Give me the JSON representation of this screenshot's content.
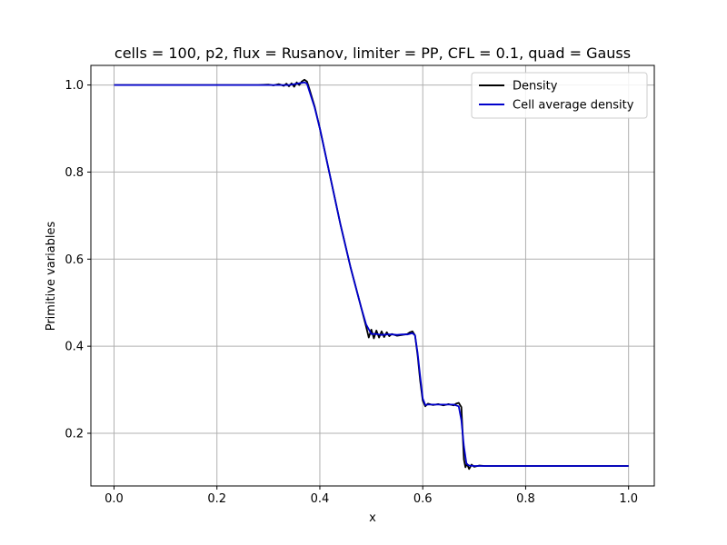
{
  "chart_data": {
    "type": "line",
    "title": "cells = 100, p2, flux = Rusanov, limiter = PP, CFL = 0.1, quad = Gauss",
    "xlabel": "x",
    "ylabel": "Primitive variables",
    "xlim": [
      -0.045,
      1.05
    ],
    "ylim": [
      0.079,
      1.045
    ],
    "xticks": [
      0.0,
      0.2,
      0.4,
      0.6,
      0.8,
      1.0
    ],
    "xtick_labels": [
      "0.0",
      "0.2",
      "0.4",
      "0.6",
      "0.8",
      "1.0"
    ],
    "yticks": [
      0.2,
      0.4,
      0.6,
      0.8,
      1.0
    ],
    "ytick_labels": [
      "0.2",
      "0.4",
      "0.6",
      "0.8",
      "1.0"
    ],
    "grid": true,
    "legend_position": "top-right",
    "series": [
      {
        "name": "Density",
        "color": "#000000",
        "points": [
          [
            0.0,
            1.0
          ],
          [
            0.28,
            1.0
          ],
          [
            0.3,
            1.001
          ],
          [
            0.31,
            0.999
          ],
          [
            0.32,
            1.002
          ],
          [
            0.33,
            0.998
          ],
          [
            0.335,
            1.003
          ],
          [
            0.34,
            0.997
          ],
          [
            0.345,
            1.004
          ],
          [
            0.35,
            0.996
          ],
          [
            0.355,
            1.006
          ],
          [
            0.36,
            1.0
          ],
          [
            0.365,
            1.008
          ],
          [
            0.37,
            1.012
          ],
          [
            0.375,
            1.008
          ],
          [
            0.38,
            0.99
          ],
          [
            0.39,
            0.95
          ],
          [
            0.4,
            0.9
          ],
          [
            0.42,
            0.79
          ],
          [
            0.44,
            0.68
          ],
          [
            0.46,
            0.58
          ],
          [
            0.48,
            0.49
          ],
          [
            0.49,
            0.445
          ],
          [
            0.495,
            0.42
          ],
          [
            0.5,
            0.438
          ],
          [
            0.505,
            0.418
          ],
          [
            0.51,
            0.436
          ],
          [
            0.515,
            0.42
          ],
          [
            0.52,
            0.434
          ],
          [
            0.525,
            0.421
          ],
          [
            0.53,
            0.432
          ],
          [
            0.535,
            0.423
          ],
          [
            0.54,
            0.428
          ],
          [
            0.55,
            0.424
          ],
          [
            0.56,
            0.426
          ],
          [
            0.57,
            0.428
          ],
          [
            0.575,
            0.432
          ],
          [
            0.58,
            0.434
          ],
          [
            0.585,
            0.425
          ],
          [
            0.59,
            0.38
          ],
          [
            0.595,
            0.32
          ],
          [
            0.6,
            0.275
          ],
          [
            0.605,
            0.262
          ],
          [
            0.61,
            0.268
          ],
          [
            0.62,
            0.265
          ],
          [
            0.63,
            0.267
          ],
          [
            0.64,
            0.264
          ],
          [
            0.65,
            0.267
          ],
          [
            0.66,
            0.264
          ],
          [
            0.665,
            0.268
          ],
          [
            0.67,
            0.27
          ],
          [
            0.675,
            0.26
          ],
          [
            0.68,
            0.14
          ],
          [
            0.683,
            0.122
          ],
          [
            0.686,
            0.13
          ],
          [
            0.69,
            0.118
          ],
          [
            0.695,
            0.128
          ],
          [
            0.7,
            0.123
          ],
          [
            0.71,
            0.126
          ],
          [
            0.72,
            0.125
          ],
          [
            1.0,
            0.125
          ]
        ]
      },
      {
        "name": "Cell average density",
        "color": "#0000cc",
        "points": [
          [
            0.0,
            1.0
          ],
          [
            0.3,
            1.0
          ],
          [
            0.34,
            1.0
          ],
          [
            0.35,
            1.002
          ],
          [
            0.36,
            1.004
          ],
          [
            0.37,
            1.006
          ],
          [
            0.375,
            1.003
          ],
          [
            0.38,
            0.985
          ],
          [
            0.39,
            0.948
          ],
          [
            0.4,
            0.9
          ],
          [
            0.42,
            0.79
          ],
          [
            0.44,
            0.68
          ],
          [
            0.46,
            0.58
          ],
          [
            0.48,
            0.49
          ],
          [
            0.49,
            0.45
          ],
          [
            0.5,
            0.428
          ],
          [
            0.51,
            0.428
          ],
          [
            0.52,
            0.426
          ],
          [
            0.53,
            0.427
          ],
          [
            0.54,
            0.427
          ],
          [
            0.55,
            0.426
          ],
          [
            0.56,
            0.427
          ],
          [
            0.57,
            0.427
          ],
          [
            0.58,
            0.43
          ],
          [
            0.585,
            0.425
          ],
          [
            0.59,
            0.385
          ],
          [
            0.595,
            0.33
          ],
          [
            0.6,
            0.28
          ],
          [
            0.605,
            0.265
          ],
          [
            0.61,
            0.266
          ],
          [
            0.62,
            0.266
          ],
          [
            0.63,
            0.266
          ],
          [
            0.64,
            0.266
          ],
          [
            0.65,
            0.266
          ],
          [
            0.66,
            0.266
          ],
          [
            0.67,
            0.262
          ],
          [
            0.675,
            0.23
          ],
          [
            0.68,
            0.17
          ],
          [
            0.685,
            0.13
          ],
          [
            0.69,
            0.126
          ],
          [
            0.7,
            0.125
          ],
          [
            1.0,
            0.125
          ]
        ]
      }
    ]
  }
}
